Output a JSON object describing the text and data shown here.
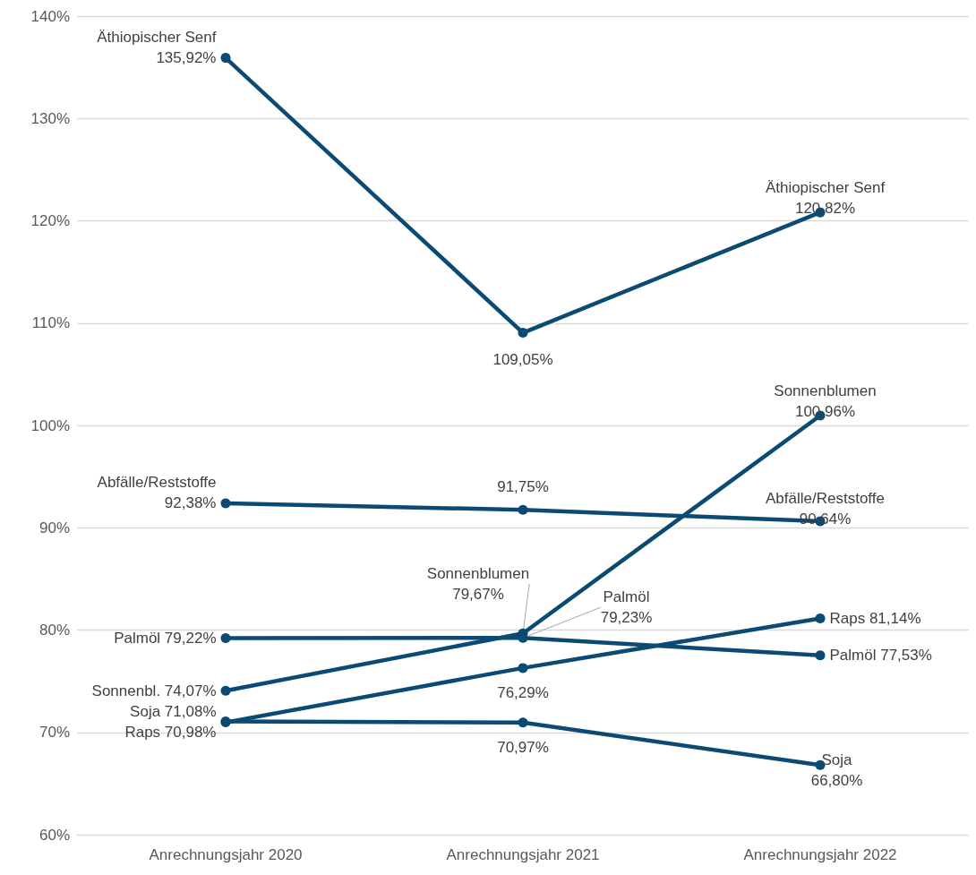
{
  "chart_data": {
    "type": "line",
    "categories": [
      "Anrechnungsjahr 2020",
      "Anrechnungsjahr 2021",
      "Anrechnungsjahr 2022"
    ],
    "series": [
      {
        "color": "#0b4a73",
        "values": [
          135.92,
          109.05,
          120.82
        ],
        "value_labels": [
          "Äthiopischer Senf\n135,92%",
          "109,05%",
          "Äthiopischer Senf\n120,82%"
        ]
      },
      {
        "color": "#0b4a73",
        "values": [
          92.38,
          91.75,
          90.64
        ],
        "value_labels": [
          "Abfälle/Reststoffe\n92,38%",
          "91,75%",
          "Abfälle/Reststoffe\n90,64%"
        ]
      },
      {
        "color": "#0b4a73",
        "values": [
          74.07,
          79.67,
          100.96
        ],
        "value_labels": [
          "Sonnenbl. 74,07%",
          "Sonnenblumen\n79,67%",
          "Sonnenblumen\n100,96%"
        ]
      },
      {
        "color": "#0b4a73",
        "values": [
          79.22,
          79.23,
          77.53
        ],
        "value_labels": [
          "Palmöl 79,22%",
          "Palmöl\n79,23%",
          "Palmöl 77,53%"
        ]
      },
      {
        "color": "#0b4a73",
        "values": [
          70.98,
          76.29,
          81.14
        ],
        "value_labels": [
          "Raps 70,98%",
          "76,29%",
          "Raps 81,14%"
        ]
      },
      {
        "color": "#0b4a73",
        "values": [
          71.08,
          70.97,
          66.8
        ],
        "value_labels": [
          "Soja 71,08%",
          "70,97%",
          "Soja\n66,80%"
        ]
      }
    ],
    "ylim": [
      60,
      140
    ],
    "yticks": [
      {
        "value": 60,
        "label": "60%"
      },
      {
        "value": 70,
        "label": "70%"
      },
      {
        "value": 80,
        "label": "80%"
      },
      {
        "value": 90,
        "label": "90%"
      },
      {
        "value": 100,
        "label": "100%"
      },
      {
        "value": 110,
        "label": "110%"
      },
      {
        "value": 120,
        "label": "120%"
      },
      {
        "value": 130,
        "label": "130%"
      },
      {
        "value": 140,
        "label": "140%"
      }
    ],
    "grid": "y",
    "marker": "circle",
    "line_style": "solid"
  }
}
